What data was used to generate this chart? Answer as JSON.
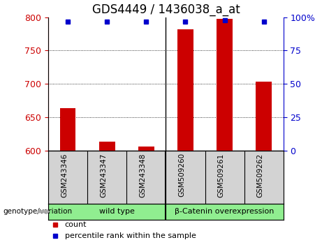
{
  "title": "GDS4449 / 1436038_a_at",
  "samples": [
    "GSM243346",
    "GSM243347",
    "GSM243348",
    "GSM509260",
    "GSM509261",
    "GSM509262"
  ],
  "counts": [
    663,
    613,
    606,
    782,
    798,
    703
  ],
  "percentile_ranks": [
    97,
    97,
    97,
    97,
    98,
    97
  ],
  "ylim_left": [
    600,
    800
  ],
  "ylim_right": [
    0,
    100
  ],
  "yticks_left": [
    600,
    650,
    700,
    750,
    800
  ],
  "yticks_right": [
    0,
    25,
    50,
    75,
    100
  ],
  "bar_color": "#cc0000",
  "square_color": "#0000cc",
  "bar_bottom": 600,
  "group1_label": "wild type",
  "group2_label": "β-Catenin overexpression",
  "group_color": "#90ee90",
  "group_sep_idx": 3,
  "xlabel_color": "#cc0000",
  "ylabel_right_color": "#0000cc",
  "background_plot": "#ffffff",
  "background_xlabels": "#d3d3d3",
  "genotype_label": "genotype/variation",
  "legend_count": "count",
  "legend_percentile": "percentile rank within the sample",
  "title_fontsize": 12,
  "tick_fontsize": 9,
  "bar_width": 0.4
}
